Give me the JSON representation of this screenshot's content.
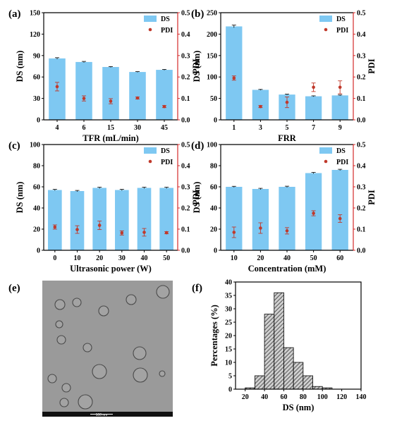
{
  "colors": {
    "bar": "#7ec8f2",
    "pdi": "#c0392b",
    "right_axis": "#d42a2a",
    "hist_fill": "#6f6f6f",
    "tem_bg": "#9a9a9a"
  },
  "chart_data": [
    {
      "panel": "(a)",
      "type": "bar",
      "categories": [
        "4",
        "6",
        "15",
        "30",
        "45"
      ],
      "series": [
        {
          "name": "DS",
          "axis": "left",
          "values": [
            86,
            81,
            74,
            67,
            70
          ],
          "errors": [
            1.0,
            0.8,
            0.6,
            0.5,
            0.6
          ]
        },
        {
          "name": "PDI",
          "axis": "right",
          "type": "scatter",
          "values": [
            0.155,
            0.1,
            0.087,
            0.102,
            0.062
          ],
          "errors": [
            0.02,
            0.012,
            0.012,
            0.005,
            0.005
          ]
        }
      ],
      "xlabel": "TFR (mL/min)",
      "ylabel": "DS (nm)",
      "y2label": "PDI",
      "ylim": [
        0,
        150
      ],
      "yticks": [
        "0",
        "30",
        "60",
        "90",
        "120",
        "150"
      ],
      "y2lim": [
        0,
        0.5
      ],
      "y2ticks": [
        "0.0",
        "0.1",
        "0.2",
        "0.3",
        "0.4",
        "0.5"
      ],
      "legend": [
        "DS",
        "PDI"
      ],
      "legend_position": "top-right"
    },
    {
      "panel": "(b)",
      "type": "bar",
      "categories": [
        "1",
        "3",
        "5",
        "7",
        "9"
      ],
      "series": [
        {
          "name": "DS",
          "axis": "left",
          "values": [
            218,
            70,
            59,
            55,
            57
          ],
          "errors": [
            3,
            1,
            1,
            1,
            1
          ]
        },
        {
          "name": "PDI",
          "axis": "right",
          "type": "scatter",
          "values": [
            0.195,
            0.062,
            0.082,
            0.152,
            0.152
          ],
          "errors": [
            0.01,
            0.005,
            0.025,
            0.02,
            0.03
          ]
        }
      ],
      "xlabel": "FRR",
      "ylabel": "DS (nm)",
      "y2label": "PDI",
      "ylim": [
        0,
        250
      ],
      "yticks": [
        "0",
        "50",
        "100",
        "150",
        "200",
        "250"
      ],
      "y2lim": [
        0,
        0.5
      ],
      "y2ticks": [
        "0.0",
        "0.1",
        "0.2",
        "0.3",
        "0.4",
        "0.5"
      ],
      "legend": [
        "DS",
        "PDI"
      ],
      "legend_position": "top-right"
    },
    {
      "panel": "(c)",
      "type": "bar",
      "categories": [
        "0",
        "10",
        "20",
        "30",
        "40",
        "50"
      ],
      "series": [
        {
          "name": "DS",
          "axis": "left",
          "values": [
            57,
            56,
            59,
            57,
            59,
            59
          ],
          "errors": [
            0.6,
            0.6,
            0.6,
            0.6,
            0.6,
            0.6
          ]
        },
        {
          "name": "PDI",
          "axis": "right",
          "type": "scatter",
          "values": [
            0.11,
            0.098,
            0.118,
            0.082,
            0.085,
            0.083
          ],
          "errors": [
            0.01,
            0.018,
            0.02,
            0.01,
            0.018,
            0.005
          ]
        }
      ],
      "xlabel": "Ultrasonic power (W)",
      "ylabel": "DS (nm)",
      "y2label": "PDI",
      "ylim": [
        0,
        100
      ],
      "yticks": [
        "0",
        "20",
        "40",
        "60",
        "80",
        "100"
      ],
      "y2lim": [
        0,
        0.5
      ],
      "y2ticks": [
        "0.0",
        "0.1",
        "0.2",
        "0.3",
        "0.4",
        "0.5"
      ],
      "legend": [
        "DS",
        "PDI"
      ],
      "legend_position": "top-right"
    },
    {
      "panel": "(d)",
      "type": "bar",
      "categories": [
        "10",
        "20",
        "40",
        "50",
        "60"
      ],
      "series": [
        {
          "name": "DS",
          "axis": "left",
          "values": [
            60,
            58,
            60,
            73,
            76
          ],
          "errors": [
            0.5,
            0.6,
            0.6,
            0.6,
            0.6
          ]
        },
        {
          "name": "PDI",
          "axis": "right",
          "type": "scatter",
          "values": [
            0.085,
            0.105,
            0.092,
            0.175,
            0.15
          ],
          "errors": [
            0.025,
            0.025,
            0.015,
            0.012,
            0.018
          ]
        }
      ],
      "xlabel": "Concentration (mM)",
      "ylabel": "DS (nm)",
      "y2label": "PDI",
      "ylim": [
        0,
        100
      ],
      "yticks": [
        "0",
        "20",
        "40",
        "60",
        "80",
        "100"
      ],
      "y2lim": [
        0,
        0.5
      ],
      "y2ticks": [
        "0.0",
        "0.1",
        "0.2",
        "0.3",
        "0.4",
        "0.5"
      ],
      "legend": [
        "DS",
        "PDI"
      ],
      "legend_position": "top-right"
    },
    {
      "panel": "(f)",
      "type": "bar",
      "subtype": "histogram",
      "bin_width": 10,
      "bin_starts": [
        20,
        30,
        40,
        50,
        60,
        70,
        80,
        90,
        100
      ],
      "values": [
        0.5,
        5,
        28,
        36,
        15.5,
        10,
        5,
        1,
        0.5
      ],
      "xlabel": "DS (nm)",
      "ylabel": "Percentages (%)",
      "xlim": [
        10,
        140
      ],
      "xticks": [
        "20",
        "40",
        "60",
        "80",
        "100",
        "120",
        "140"
      ],
      "ylim": [
        0,
        40
      ],
      "yticks": [
        "0",
        "5",
        "10",
        "15",
        "20",
        "25",
        "30",
        "35",
        "40"
      ]
    }
  ],
  "tem": {
    "panel": "(e)",
    "scale_bar_label": "100 nm"
  }
}
